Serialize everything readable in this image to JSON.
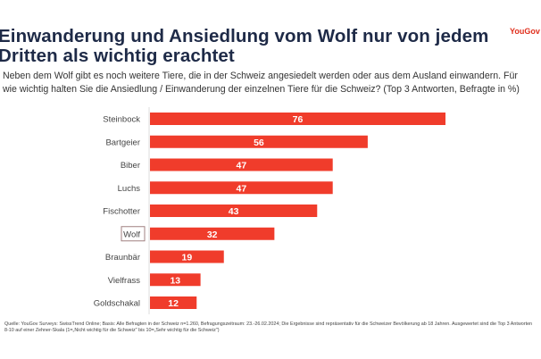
{
  "header": {
    "title": "Einwanderung und Ansiedlung vom Wolf nur von jedem Dritten als wichtig erachtet",
    "subtitle": "Neben dem Wolf gibt es noch weitere Tiere, die in der Schweiz angesiedelt werden oder aus dem Ausland einwandern. Für wie wichtig halten Sie die Ansiedlung / Einwanderung der einzelnen Tiere für die Schweiz? (Top 3 Antworten, Befragte in %)",
    "logo": "YouGov"
  },
  "footer": {
    "source": "Quelle: YouGov Surveys: SwissTrend Online; Basis: Alle Befragten in der Schweiz n=1.260, Befragungszeitraum: 23.-26.02.2024; Die Ergebnisse sind repräsentativ für die Schweizer Bevölkerung ab 18 Jahren. Ausgewertet sind die Top 3 Antworten 8-10 auf einer Zehner-Skala (1=„Nicht wichtig für die Schweiz\" bis 10=„Sehr wichtig für die Schweiz\")"
  },
  "chart_data": {
    "type": "bar",
    "orientation": "horizontal",
    "categories": [
      "Steinbock",
      "Bartgeier",
      "Biber",
      "Luchs",
      "Fischotter",
      "Wolf",
      "Braunbär",
      "Vielfrass",
      "Goldschakal"
    ],
    "values": [
      76,
      56,
      47,
      47,
      43,
      32,
      19,
      13,
      12
    ],
    "highlighted_category": "Wolf",
    "xlim": [
      0,
      80
    ],
    "grid": false,
    "data_labels": true,
    "colors": {
      "bar": "#f03c2b",
      "highlight_border": "#a08080"
    }
  }
}
